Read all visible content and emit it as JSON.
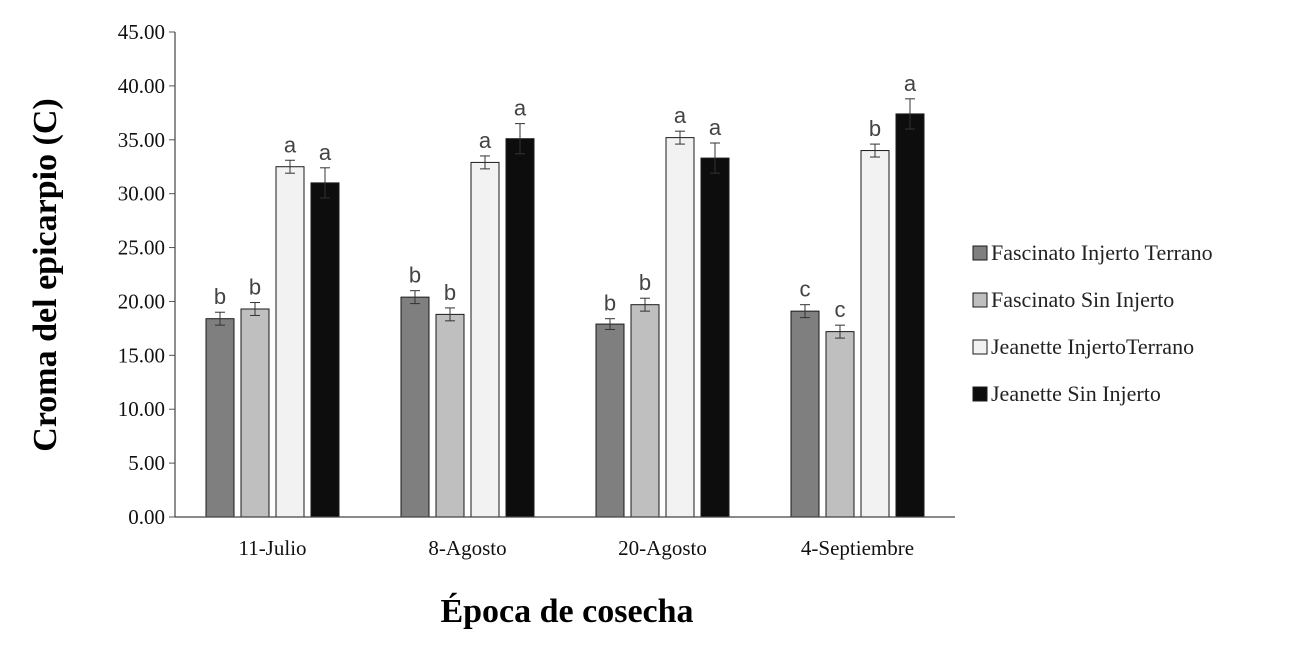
{
  "chart_data": {
    "type": "bar",
    "xlabel": "Época de cosecha",
    "ylabel": "Croma del epicarpio (C)",
    "ylim": [
      0,
      45
    ],
    "ytick_step": 5,
    "ytick_format_decimals": 2,
    "grid": false,
    "legend_position": "right",
    "categories": [
      "11-Julio",
      "8-Agosto",
      "20-Agosto",
      "4-Septiembre"
    ],
    "series": [
      {
        "name": "Fascinato Injerto Terrano",
        "color": "#7f7f7f",
        "values": [
          18.4,
          20.4,
          17.9,
          19.1
        ],
        "errors": [
          0.6,
          0.6,
          0.5,
          0.6
        ],
        "labels": [
          "b",
          "b",
          "b",
          "c"
        ]
      },
      {
        "name": "Fascinato Sin Injerto",
        "color": "#bfbfbf",
        "values": [
          19.3,
          18.8,
          19.7,
          17.2
        ],
        "errors": [
          0.6,
          0.6,
          0.6,
          0.6
        ],
        "labels": [
          "b",
          "b",
          "b",
          "c"
        ]
      },
      {
        "name": "Jeanette InjertoTerrano",
        "color": "#f2f2f2",
        "values": [
          32.5,
          32.9,
          35.2,
          34.0
        ],
        "errors": [
          0.6,
          0.6,
          0.6,
          0.6
        ],
        "labels": [
          "a",
          "a",
          "a",
          "b"
        ]
      },
      {
        "name": "Jeanette Sin Injerto",
        "color": "#0d0d0d",
        "values": [
          31.0,
          35.1,
          33.3,
          37.4
        ],
        "errors": [
          1.4,
          1.4,
          1.4,
          1.4
        ],
        "labels": [
          "a",
          "a",
          "a",
          "a"
        ]
      }
    ]
  }
}
